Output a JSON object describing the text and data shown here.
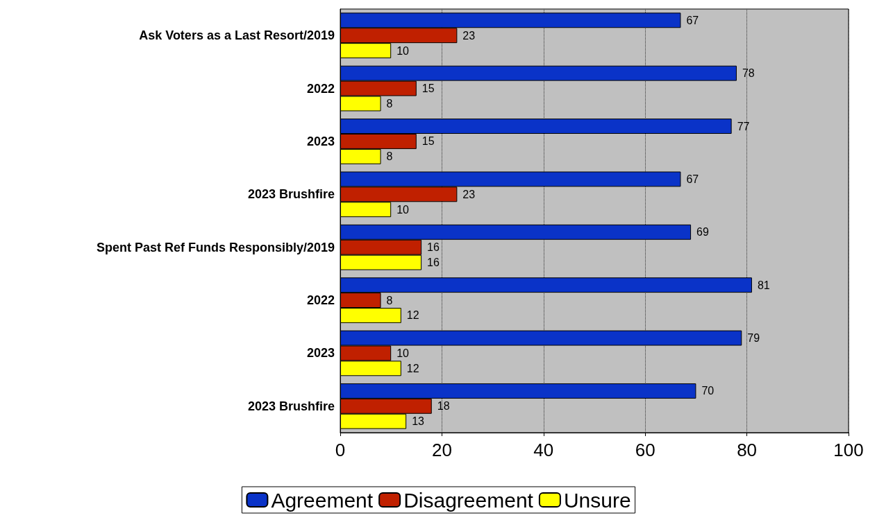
{
  "chart_data": {
    "type": "bar",
    "orientation": "horizontal",
    "categories": [
      "Ask Voters as a Last Resort/2019",
      "2022",
      "2023",
      "2023 Brushfire",
      "Spent Past Ref Funds Responsibly/2019",
      "2022",
      "2023",
      "2023 Brushfire"
    ],
    "series": [
      {
        "name": "Agreement",
        "color": "#0a33c8",
        "values": [
          67,
          78,
          77,
          67,
          69,
          81,
          79,
          70
        ]
      },
      {
        "name": "Disagreement",
        "color": "#c02000",
        "values": [
          23,
          15,
          15,
          23,
          16,
          8,
          10,
          18
        ]
      },
      {
        "name": "Unsure",
        "color": "#ffff00",
        "values": [
          10,
          8,
          8,
          10,
          16,
          12,
          12,
          13
        ]
      }
    ],
    "xlim": [
      0,
      100
    ],
    "xticks": [
      0,
      20,
      40,
      60,
      80,
      100
    ],
    "grid": "x",
    "legend": "bottom",
    "data_labels": true
  }
}
